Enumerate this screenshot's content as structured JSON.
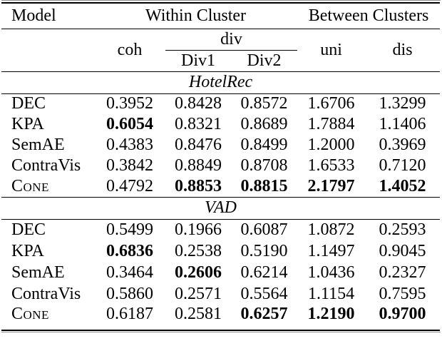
{
  "header": {
    "model": "Model",
    "group_within": "Within Cluster",
    "group_between": "Between Clusters",
    "col_coh": "coh",
    "col_div": "div",
    "col_div1": "Div1",
    "col_div2": "Div2",
    "col_uni": "uni",
    "col_dis": "dis"
  },
  "sections": [
    {
      "title": "HotelRec",
      "rows": [
        {
          "model": "DEC",
          "values": [
            "0.3952",
            "0.8428",
            "0.8572",
            "1.6706",
            "1.3299"
          ],
          "bold": [
            false,
            false,
            false,
            false,
            false
          ]
        },
        {
          "model": "KPA",
          "values": [
            "0.6054",
            "0.8321",
            "0.8689",
            "1.7884",
            "1.1406"
          ],
          "bold": [
            true,
            false,
            false,
            false,
            false
          ]
        },
        {
          "model": "SemAE",
          "values": [
            "0.4383",
            "0.8476",
            "0.8499",
            "1.2000",
            "0.3969"
          ],
          "bold": [
            false,
            false,
            false,
            false,
            false
          ]
        },
        {
          "model": "ContraVis",
          "values": [
            "0.3842",
            "0.8849",
            "0.8708",
            "1.6533",
            "0.7120"
          ],
          "bold": [
            false,
            false,
            false,
            false,
            false
          ]
        },
        {
          "model": "Cone",
          "values": [
            "0.4792",
            "0.8853",
            "0.8815",
            "2.1797",
            "1.4052"
          ],
          "bold": [
            false,
            true,
            true,
            true,
            true
          ]
        }
      ]
    },
    {
      "title": "VAD",
      "rows": [
        {
          "model": "DEC",
          "values": [
            "0.5499",
            "0.1966",
            "0.6087",
            "1.0872",
            "0.2593"
          ],
          "bold": [
            false,
            false,
            false,
            false,
            false
          ]
        },
        {
          "model": "KPA",
          "values": [
            "0.6836",
            "0.2538",
            "0.5190",
            "1.1497",
            "0.9045"
          ],
          "bold": [
            true,
            false,
            false,
            false,
            false
          ]
        },
        {
          "model": "SemAE",
          "values": [
            "0.3464",
            "0.2606",
            "0.6214",
            "1.0436",
            "0.2327"
          ],
          "bold": [
            false,
            true,
            false,
            false,
            false
          ]
        },
        {
          "model": "ContraVis",
          "values": [
            "0.5860",
            "0.2571",
            "0.5564",
            "1.1154",
            "0.7595"
          ],
          "bold": [
            false,
            false,
            false,
            false,
            false
          ]
        },
        {
          "model": "Cone",
          "values": [
            "0.6187",
            "0.2581",
            "0.6257",
            "1.2190",
            "0.9700"
          ],
          "bold": [
            false,
            false,
            true,
            true,
            true
          ]
        }
      ]
    }
  ],
  "colors": {
    "text": "#000000",
    "rule": "#000000",
    "background": "#ffffff"
  }
}
